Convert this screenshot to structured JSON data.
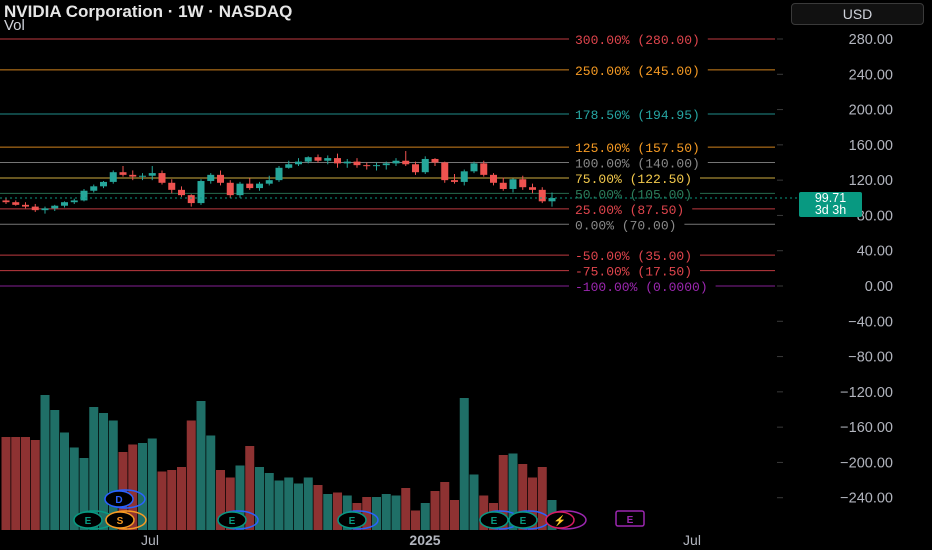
{
  "header": {
    "symbol_title": "NVIDIA Corporation · 1W · NASDAQ",
    "volume_label": "Vol",
    "currency_button": "USD"
  },
  "price_label": {
    "price": "99.71",
    "countdown": "3d 3h",
    "color": "#089981"
  },
  "colors": {
    "up": "#26a69a",
    "down": "#ef5350",
    "vol_up": "#1f6f67",
    "vol_down": "#8e3232"
  },
  "fib_levels": [
    {
      "label": "300.00% (280.00)",
      "price": 280.0,
      "color": "#e0454d"
    },
    {
      "label": "250.00% (245.00)",
      "price": 245.0,
      "color": "#f59a23"
    },
    {
      "label": "178.50% (194.95)",
      "price": 194.95,
      "color": "#26a6a3"
    },
    {
      "label": "125.00% (157.50)",
      "price": 157.5,
      "color": "#f59a23"
    },
    {
      "label": "100.00% (140.00)",
      "price": 140.0,
      "color": "#8a8a8a"
    },
    {
      "label": "75.00% (122.50)",
      "price": 122.5,
      "color": "#f2c94c"
    },
    {
      "label": "50.00% (105.00)",
      "price": 105.0,
      "color": "#2e7d5b"
    },
    {
      "label": "25.00% (87.50)",
      "price": 87.5,
      "color": "#e0454d"
    },
    {
      "label": "0.00% (70.00)",
      "price": 70.0,
      "color": "#8a8a8a"
    },
    {
      "label": "-50.00% (35.00)",
      "price": 35.0,
      "color": "#e0454d"
    },
    {
      "label": "-75.00% (17.50)",
      "price": 17.5,
      "color": "#e0454d"
    },
    {
      "label": "-100.00% (0.0000)",
      "price": 0.0,
      "color": "#9c27b0"
    }
  ],
  "y_axis_ticks": [
    "280.00",
    "240.00",
    "200.00",
    "160.00",
    "120.00",
    "80.00",
    "40.00",
    "0.00",
    "−40.00",
    "−80.00",
    "−120.00",
    "−160.00",
    "−200.00",
    "−240.00"
  ],
  "x_axis_labels": [
    "Jul",
    "2025",
    "Jul"
  ],
  "event_badges": [
    "D",
    "E",
    "S",
    "E",
    "E",
    "E",
    "E",
    "E",
    "⚡"
  ],
  "chart_data": {
    "type": "candlestick",
    "interval": "1W",
    "candles": [
      {
        "o": 97,
        "h": 99,
        "l": 93,
        "c": 95
      },
      {
        "o": 95,
        "h": 97,
        "l": 91,
        "c": 92
      },
      {
        "o": 92,
        "h": 95,
        "l": 88,
        "c": 90
      },
      {
        "o": 90,
        "h": 93,
        "l": 84,
        "c": 86
      },
      {
        "o": 86,
        "h": 90,
        "l": 82,
        "c": 88
      },
      {
        "o": 88,
        "h": 92,
        "l": 85,
        "c": 91
      },
      {
        "o": 91,
        "h": 96,
        "l": 89,
        "c": 95
      },
      {
        "o": 95,
        "h": 99,
        "l": 93,
        "c": 97
      },
      {
        "o": 97,
        "h": 110,
        "l": 96,
        "c": 108
      },
      {
        "o": 108,
        "h": 115,
        "l": 106,
        "c": 113
      },
      {
        "o": 113,
        "h": 119,
        "l": 111,
        "c": 118
      },
      {
        "o": 118,
        "h": 131,
        "l": 116,
        "c": 129
      },
      {
        "o": 129,
        "h": 136,
        "l": 124,
        "c": 126
      },
      {
        "o": 126,
        "h": 131,
        "l": 120,
        "c": 124
      },
      {
        "o": 124,
        "h": 128,
        "l": 120,
        "c": 125
      },
      {
        "o": 125,
        "h": 136,
        "l": 120,
        "c": 128
      },
      {
        "o": 128,
        "h": 131,
        "l": 115,
        "c": 117
      },
      {
        "o": 117,
        "h": 121,
        "l": 105,
        "c": 109
      },
      {
        "o": 109,
        "h": 113,
        "l": 101,
        "c": 103
      },
      {
        "o": 103,
        "h": 104,
        "l": 90,
        "c": 94
      },
      {
        "o": 94,
        "h": 121,
        "l": 92,
        "c": 119
      },
      {
        "o": 119,
        "h": 128,
        "l": 116,
        "c": 126
      },
      {
        "o": 126,
        "h": 131,
        "l": 114,
        "c": 117
      },
      {
        "o": 117,
        "h": 120,
        "l": 100,
        "c": 103
      },
      {
        "o": 103,
        "h": 118,
        "l": 100,
        "c": 116
      },
      {
        "o": 116,
        "h": 122,
        "l": 109,
        "c": 111
      },
      {
        "o": 111,
        "h": 118,
        "l": 108,
        "c": 116
      },
      {
        "o": 116,
        "h": 125,
        "l": 114,
        "c": 120
      },
      {
        "o": 120,
        "h": 136,
        "l": 118,
        "c": 134
      },
      {
        "o": 134,
        "h": 142,
        "l": 133,
        "c": 138
      },
      {
        "o": 138,
        "h": 145,
        "l": 136,
        "c": 141
      },
      {
        "o": 141,
        "h": 147,
        "l": 139,
        "c": 146
      },
      {
        "o": 146,
        "h": 149,
        "l": 140,
        "c": 142
      },
      {
        "o": 142,
        "h": 148,
        "l": 138,
        "c": 145
      },
      {
        "o": 145,
        "h": 150,
        "l": 134,
        "c": 139
      },
      {
        "o": 139,
        "h": 144,
        "l": 134,
        "c": 141
      },
      {
        "o": 141,
        "h": 145,
        "l": 134,
        "c": 137
      },
      {
        "o": 137,
        "h": 140,
        "l": 132,
        "c": 136
      },
      {
        "o": 136,
        "h": 140,
        "l": 131,
        "c": 137
      },
      {
        "o": 137,
        "h": 141,
        "l": 132,
        "c": 139
      },
      {
        "o": 139,
        "h": 145,
        "l": 136,
        "c": 142
      },
      {
        "o": 142,
        "h": 153,
        "l": 136,
        "c": 138
      },
      {
        "o": 138,
        "h": 141,
        "l": 126,
        "c": 129
      },
      {
        "o": 129,
        "h": 147,
        "l": 127,
        "c": 144
      },
      {
        "o": 144,
        "h": 145,
        "l": 136,
        "c": 140
      },
      {
        "o": 140,
        "h": 141,
        "l": 117,
        "c": 120
      },
      {
        "o": 120,
        "h": 127,
        "l": 116,
        "c": 118
      },
      {
        "o": 118,
        "h": 132,
        "l": 114,
        "c": 130
      },
      {
        "o": 130,
        "h": 141,
        "l": 128,
        "c": 139
      },
      {
        "o": 139,
        "h": 142,
        "l": 124,
        "c": 126
      },
      {
        "o": 126,
        "h": 128,
        "l": 114,
        "c": 117
      },
      {
        "o": 117,
        "h": 123,
        "l": 108,
        "c": 110
      },
      {
        "o": 110,
        "h": 122,
        "l": 106,
        "c": 121
      },
      {
        "o": 121,
        "h": 125,
        "l": 109,
        "c": 112
      },
      {
        "o": 112,
        "h": 116,
        "l": 105,
        "c": 109
      },
      {
        "o": 109,
        "h": 112,
        "l": 94,
        "c": 96
      },
      {
        "o": 96,
        "h": 106,
        "l": 90,
        "c": 99.71
      }
    ],
    "volume_relative": [
      0.62,
      0.62,
      0.62,
      0.6,
      0.9,
      0.8,
      0.65,
      0.55,
      0.48,
      0.82,
      0.78,
      0.73,
      0.52,
      0.57,
      0.58,
      0.61,
      0.39,
      0.4,
      0.42,
      0.73,
      0.86,
      0.63,
      0.4,
      0.35,
      0.43,
      0.56,
      0.42,
      0.38,
      0.33,
      0.35,
      0.31,
      0.35,
      0.3,
      0.24,
      0.25,
      0.23,
      0.18,
      0.22,
      0.22,
      0.24,
      0.23,
      0.28,
      0.13,
      0.18,
      0.26,
      0.32,
      0.2,
      0.88,
      0.37,
      0.23,
      0.18,
      0.5,
      0.51,
      0.44,
      0.35,
      0.42,
      0.2
    ],
    "ylim": [
      -260,
      300
    ]
  }
}
